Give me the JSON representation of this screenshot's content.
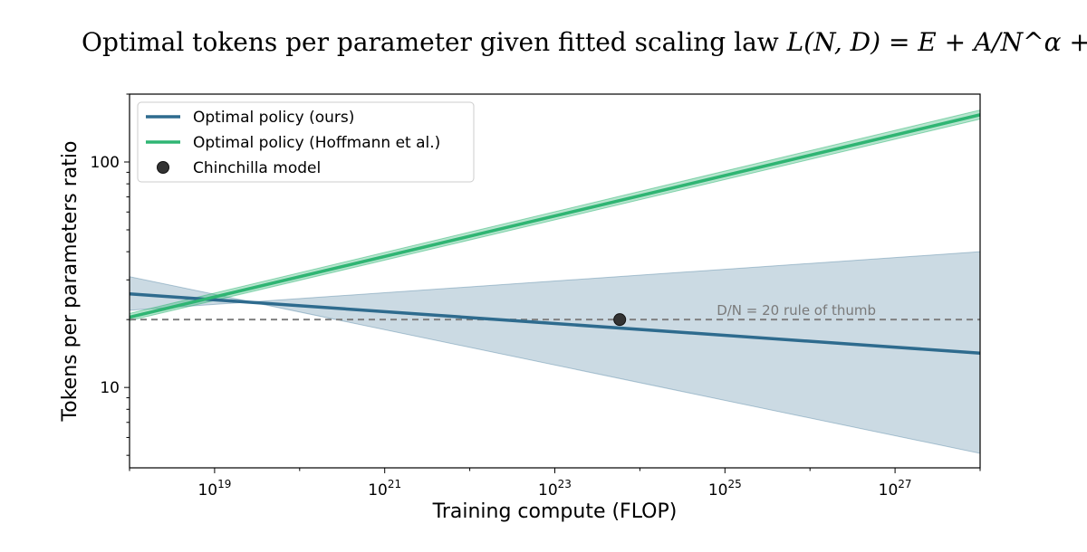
{
  "chart_data": {
    "type": "line",
    "title": "Optimal tokens per parameter given fitted scaling law",
    "title_formula": "L(N, D) = E + A/N^α + B/D^β",
    "xlabel": "Training compute (FLOP)",
    "ylabel": "Tokens per parameters ratio",
    "xscale": "log",
    "yscale": "log",
    "xlim": [
      1e+18,
      1e+28
    ],
    "ylim": [
      4.4,
      200
    ],
    "x_ticks": [
      1e+19,
      1e+21,
      1e+23,
      1e+25,
      1e+27
    ],
    "x_tick_labels": [
      {
        "base": "10",
        "exp": "19"
      },
      {
        "base": "10",
        "exp": "21"
      },
      {
        "base": "10",
        "exp": "23"
      },
      {
        "base": "10",
        "exp": "25"
      },
      {
        "base": "10",
        "exp": "27"
      }
    ],
    "y_ticks": [
      10,
      100
    ],
    "y_tick_labels": [
      "10",
      "100"
    ],
    "grid": false,
    "legend_placement": "top-left",
    "series": [
      {
        "name": "Optimal policy (ours)",
        "color": "#2e6b8e",
        "x": [
          1e+18,
          1e+28
        ],
        "y": [
          26,
          14.2
        ],
        "band_lower": [
          31,
          5.1
        ],
        "band_upper": [
          22,
          40
        ]
      },
      {
        "name": "Optimal policy (Hoffmann et al.)",
        "color": "#2fb573",
        "x": [
          1e+18,
          1e+28
        ],
        "y": [
          20.5,
          162
        ],
        "band_lower": [
          19.8,
          155
        ],
        "band_upper": [
          21.3,
          170
        ]
      }
    ],
    "points": [
      {
        "name": "Chinchilla model",
        "color": "#333333",
        "x": 5.8e+23,
        "y": 20
      }
    ],
    "reference_lines": [
      {
        "y": 20,
        "style": "dashed",
        "color": "#808080",
        "label": "D/N = 20 rule of thumb"
      }
    ]
  }
}
